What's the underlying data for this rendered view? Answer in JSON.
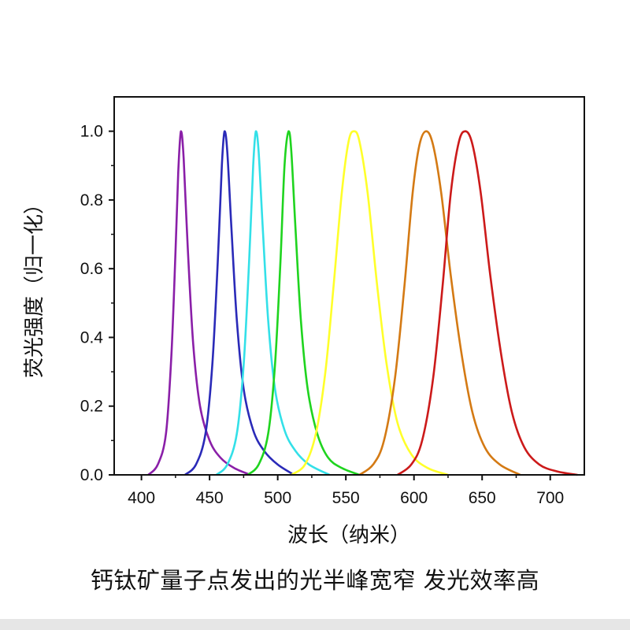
{
  "caption": "钙钛矿量子点发出的光半峰宽窄 发光效率高",
  "chart_data": {
    "type": "line",
    "title": "",
    "xlabel": "波长（纳米）",
    "ylabel": "荧光强度（归一化）",
    "xlim": [
      380,
      725
    ],
    "ylim": [
      0,
      1.1
    ],
    "xticks": [
      400,
      450,
      500,
      550,
      600,
      650,
      700
    ],
    "yticks": [
      "0.0",
      "0.2",
      "0.4",
      "0.6",
      "0.8",
      "1.0"
    ],
    "grid": false,
    "legend": "none",
    "series": [
      {
        "color": "#8a1fa8",
        "peak": 429,
        "points": [
          [
            405,
            0.0
          ],
          [
            412,
            0.03
          ],
          [
            418,
            0.12
          ],
          [
            422,
            0.35
          ],
          [
            425,
            0.65
          ],
          [
            427,
            0.88
          ],
          [
            429,
            1.0
          ],
          [
            431,
            0.92
          ],
          [
            434,
            0.66
          ],
          [
            438,
            0.38
          ],
          [
            443,
            0.2
          ],
          [
            450,
            0.1
          ],
          [
            458,
            0.05
          ],
          [
            468,
            0.02
          ],
          [
            480,
            0.0
          ]
        ]
      },
      {
        "color": "#2a2ab8",
        "peak": 461,
        "points": [
          [
            432,
            0.0
          ],
          [
            440,
            0.03
          ],
          [
            447,
            0.12
          ],
          [
            452,
            0.32
          ],
          [
            456,
            0.62
          ],
          [
            459,
            0.9
          ],
          [
            461,
            1.0
          ],
          [
            463,
            0.94
          ],
          [
            466,
            0.72
          ],
          [
            470,
            0.45
          ],
          [
            475,
            0.25
          ],
          [
            482,
            0.13
          ],
          [
            490,
            0.07
          ],
          [
            500,
            0.03
          ],
          [
            512,
            0.0
          ]
        ]
      },
      {
        "color": "#33e0e8",
        "peak": 484,
        "points": [
          [
            455,
            0.0
          ],
          [
            463,
            0.03
          ],
          [
            470,
            0.12
          ],
          [
            475,
            0.32
          ],
          [
            479,
            0.62
          ],
          [
            482,
            0.9
          ],
          [
            484,
            1.0
          ],
          [
            486,
            0.94
          ],
          [
            489,
            0.72
          ],
          [
            493,
            0.45
          ],
          [
            498,
            0.25
          ],
          [
            505,
            0.13
          ],
          [
            513,
            0.07
          ],
          [
            523,
            0.03
          ],
          [
            538,
            0.0
          ]
        ]
      },
      {
        "color": "#1fd41f",
        "peak": 508,
        "points": [
          [
            478,
            0.0
          ],
          [
            486,
            0.03
          ],
          [
            493,
            0.12
          ],
          [
            498,
            0.32
          ],
          [
            502,
            0.62
          ],
          [
            505,
            0.9
          ],
          [
            508,
            1.0
          ],
          [
            510,
            0.94
          ],
          [
            513,
            0.72
          ],
          [
            517,
            0.45
          ],
          [
            522,
            0.25
          ],
          [
            529,
            0.12
          ],
          [
            537,
            0.05
          ],
          [
            547,
            0.02
          ],
          [
            560,
            0.0
          ]
        ]
      },
      {
        "color": "#ffff2a",
        "peak": 556,
        "points": [
          [
            510,
            0.0
          ],
          [
            520,
            0.03
          ],
          [
            528,
            0.12
          ],
          [
            535,
            0.3
          ],
          [
            541,
            0.55
          ],
          [
            547,
            0.82
          ],
          [
            552,
            0.97
          ],
          [
            556,
            1.0
          ],
          [
            560,
            0.97
          ],
          [
            566,
            0.82
          ],
          [
            573,
            0.55
          ],
          [
            580,
            0.32
          ],
          [
            588,
            0.15
          ],
          [
            598,
            0.06
          ],
          [
            610,
            0.02
          ],
          [
            625,
            0.0
          ]
        ]
      },
      {
        "color": "#d47a14",
        "peak": 609,
        "points": [
          [
            560,
            0.0
          ],
          [
            570,
            0.03
          ],
          [
            578,
            0.1
          ],
          [
            586,
            0.28
          ],
          [
            593,
            0.55
          ],
          [
            599,
            0.82
          ],
          [
            604,
            0.96
          ],
          [
            609,
            1.0
          ],
          [
            614,
            0.96
          ],
          [
            620,
            0.82
          ],
          [
            627,
            0.58
          ],
          [
            635,
            0.35
          ],
          [
            643,
            0.18
          ],
          [
            652,
            0.08
          ],
          [
            663,
            0.03
          ],
          [
            678,
            0.0
          ]
        ]
      },
      {
        "color": "#cc1a1a",
        "peak": 638,
        "points": [
          [
            588,
            0.0
          ],
          [
            598,
            0.03
          ],
          [
            606,
            0.1
          ],
          [
            614,
            0.28
          ],
          [
            621,
            0.55
          ],
          [
            627,
            0.82
          ],
          [
            633,
            0.97
          ],
          [
            638,
            1.0
          ],
          [
            643,
            0.96
          ],
          [
            649,
            0.82
          ],
          [
            656,
            0.58
          ],
          [
            664,
            0.35
          ],
          [
            672,
            0.18
          ],
          [
            681,
            0.08
          ],
          [
            692,
            0.03
          ],
          [
            705,
            0.01
          ],
          [
            720,
            0.0
          ]
        ]
      }
    ]
  }
}
